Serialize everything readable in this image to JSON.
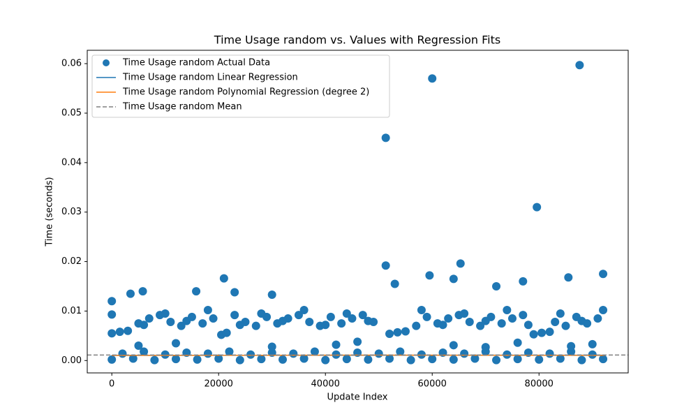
{
  "chart_data": {
    "type": "scatter",
    "title": "Time Usage random vs. Values with Regression Fits",
    "xlabel": "Update Index",
    "ylabel": "Time (seconds)",
    "xlim": [
      -4600,
      96700
    ],
    "ylim": [
      -0.0025,
      0.0627
    ],
    "xticks": [
      0,
      20000,
      40000,
      60000,
      80000
    ],
    "yticks": [
      {
        "value": 0,
        "label": "0.00"
      },
      {
        "value": 0.01,
        "label": "0.01"
      },
      {
        "value": 0.02,
        "label": "0.02"
      },
      {
        "value": 0.03,
        "label": "0.03"
      },
      {
        "value": 0.04,
        "label": "0.04"
      },
      {
        "value": 0.05,
        "label": "0.05"
      },
      {
        "value": 0.06,
        "label": "0.06"
      }
    ],
    "legend": "upper left",
    "series": [
      {
        "name": "Time Usage random Actual Data",
        "color": "#1f77b4",
        "kind": "scatter",
        "x": [
          0,
          4000,
          8000,
          12000,
          16000,
          20000,
          24000,
          28000,
          32000,
          36000,
          40000,
          44000,
          48000,
          52000,
          56000,
          60000,
          64000,
          68000,
          72000,
          76000,
          80000,
          84000,
          88000,
          92000,
          2000,
          6000,
          10000,
          14000,
          18000,
          22000,
          26000,
          30000,
          34000,
          38000,
          42000,
          46000,
          50000,
          54000,
          58000,
          62000,
          66000,
          70000,
          74000,
          78000,
          82000,
          86000,
          90000,
          0,
          1500,
          3000,
          20500,
          21500,
          52000,
          53500,
          55000,
          79000,
          80500,
          82000,
          5000,
          7000,
          9000,
          11000,
          13000,
          15000,
          17000,
          19000,
          23000,
          25000,
          27000,
          29000,
          31000,
          33000,
          35000,
          37000,
          39000,
          41000,
          43000,
          45000,
          47000,
          49000,
          57000,
          59000,
          61000,
          63000,
          65000,
          67000,
          69000,
          71000,
          73000,
          75000,
          77000,
          83000,
          85000,
          87000,
          89000,
          91000,
          6000,
          10000,
          14000,
          18000,
          24000,
          28000,
          32000,
          36000,
          40000,
          44000,
          48000,
          58000,
          62000,
          66000,
          70000,
          74000,
          78000,
          84000,
          88000,
          92000,
          5000,
          12000,
          30000,
          42000,
          46000,
          64000,
          70000,
          76000,
          86000,
          90000,
          51300,
          60000,
          87600,
          79600,
          51300,
          65300,
          59500,
          21000,
          92000,
          85500,
          0,
          0,
          3500,
          5800,
          15800,
          23000,
          30000,
          77000,
          64000,
          53000,
          72000
        ],
        "values": [
          0.0002,
          0.0004,
          0.0001,
          0.0003,
          0.0002,
          0.0004,
          0.0001,
          0.0003,
          0.0002,
          0.0004,
          0.0001,
          0.0003,
          0.0002,
          0.0004,
          0.0001,
          0.0003,
          0.0002,
          0.0004,
          0.0001,
          0.0003,
          0.0002,
          0.0004,
          0.0001,
          0.0003,
          0.0014,
          0.0018,
          0.0012,
          0.0016,
          0.0014,
          0.0018,
          0.0012,
          0.0016,
          0.0014,
          0.0018,
          0.0012,
          0.0016,
          0.0014,
          0.0018,
          0.0012,
          0.0016,
          0.0014,
          0.0018,
          0.0012,
          0.0016,
          0.0014,
          0.0018,
          0.0012,
          0.0055,
          0.0058,
          0.006,
          0.0052,
          0.0056,
          0.0054,
          0.0057,
          0.0059,
          0.0053,
          0.0056,
          0.0058,
          0.0075,
          0.0085,
          0.0092,
          0.0078,
          0.007,
          0.0088,
          0.0075,
          0.0085,
          0.0092,
          0.0078,
          0.007,
          0.0088,
          0.0075,
          0.0085,
          0.0092,
          0.0078,
          0.007,
          0.0088,
          0.0075,
          0.0085,
          0.0092,
          0.0078,
          0.007,
          0.0088,
          0.0075,
          0.0085,
          0.0092,
          0.0078,
          0.007,
          0.0088,
          0.0075,
          0.0085,
          0.0092,
          0.0078,
          0.007,
          0.0088,
          0.0075,
          0.0085,
          0.0072,
          0.0095,
          0.008,
          0.0102,
          0.0072,
          0.0095,
          0.008,
          0.0102,
          0.0072,
          0.0095,
          0.008,
          0.0102,
          0.0072,
          0.0095,
          0.008,
          0.0102,
          0.0072,
          0.0095,
          0.008,
          0.0102,
          0.003,
          0.0035,
          0.0028,
          0.0032,
          0.0038,
          0.0031,
          0.0027,
          0.0036,
          0.0029,
          0.0033,
          0.045,
          0.057,
          0.0597,
          0.031,
          0.0192,
          0.0196,
          0.0172,
          0.0166,
          0.0175,
          0.0168,
          0.012,
          0.0093,
          0.0135,
          0.014,
          0.014,
          0.0138,
          0.0133,
          0.016,
          0.0165,
          0.0155,
          0.015
        ]
      },
      {
        "name": "Time Usage random Linear Regression",
        "color": "#1f77b4",
        "kind": "line",
        "x": [
          0,
          92300
        ],
        "values": [
          0.00106,
          0.00108
        ]
      },
      {
        "name": "Time Usage random Polynomial Regression (degree 2)",
        "color": "#ff7f0e",
        "kind": "line",
        "x": [
          0,
          46000,
          92300
        ],
        "values": [
          0.00102,
          0.0011,
          0.00104
        ]
      },
      {
        "name": "Time Usage random Mean",
        "color": "#808080",
        "kind": "hline",
        "linestyle": "dashed",
        "values": [
          0.00112
        ]
      }
    ]
  }
}
